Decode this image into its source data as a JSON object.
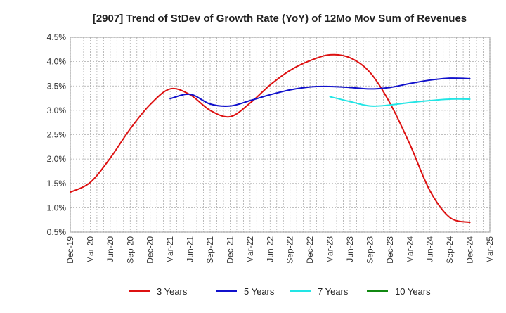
{
  "chart_data": {
    "type": "line",
    "title": "[2907]  Trend of StDev of Growth Rate (YoY) of 12Mo Mov Sum of Revenues",
    "xlabel": "",
    "ylabel": "",
    "x": [
      "Dec-19",
      "Mar-20",
      "Jun-20",
      "Sep-20",
      "Dec-20",
      "Mar-21",
      "Jun-21",
      "Sep-21",
      "Dec-21",
      "Mar-22",
      "Jun-22",
      "Sep-22",
      "Dec-22",
      "Mar-23",
      "Jun-23",
      "Sep-23",
      "Dec-23",
      "Mar-24",
      "Jun-24",
      "Sep-24",
      "Dec-24",
      "Mar-25"
    ],
    "y_ticks": [
      "0.5%",
      "1.0%",
      "1.5%",
      "2.0%",
      "2.5%",
      "3.0%",
      "3.5%",
      "4.0%",
      "4.5%"
    ],
    "ylim": [
      0.5,
      4.5
    ],
    "grid": true,
    "legend_position": "bottom",
    "series": [
      {
        "name": "3 Years",
        "color": "#dd1111",
        "values": [
          1.32,
          1.52,
          2.02,
          2.62,
          3.12,
          3.44,
          3.32,
          3.0,
          2.87,
          3.15,
          3.52,
          3.82,
          4.02,
          4.14,
          4.08,
          3.78,
          3.15,
          2.3,
          1.35,
          0.8,
          0.7,
          null
        ]
      },
      {
        "name": "5 Years",
        "color": "#1111cc",
        "values": [
          null,
          null,
          null,
          null,
          null,
          3.24,
          3.33,
          3.13,
          3.09,
          3.2,
          3.32,
          3.42,
          3.48,
          3.49,
          3.47,
          3.44,
          3.47,
          3.55,
          3.62,
          3.66,
          3.65,
          null
        ]
      },
      {
        "name": "7 Years",
        "color": "#22e5e5",
        "values": [
          null,
          null,
          null,
          null,
          null,
          null,
          null,
          null,
          null,
          null,
          null,
          null,
          null,
          3.28,
          3.18,
          3.09,
          3.11,
          3.16,
          3.2,
          3.23,
          3.23,
          null
        ]
      },
      {
        "name": "10 Years",
        "color": "#118811",
        "values": [
          null,
          null,
          null,
          null,
          null,
          null,
          null,
          null,
          null,
          null,
          null,
          null,
          null,
          null,
          null,
          null,
          null,
          null,
          null,
          null,
          null,
          null
        ]
      }
    ]
  }
}
